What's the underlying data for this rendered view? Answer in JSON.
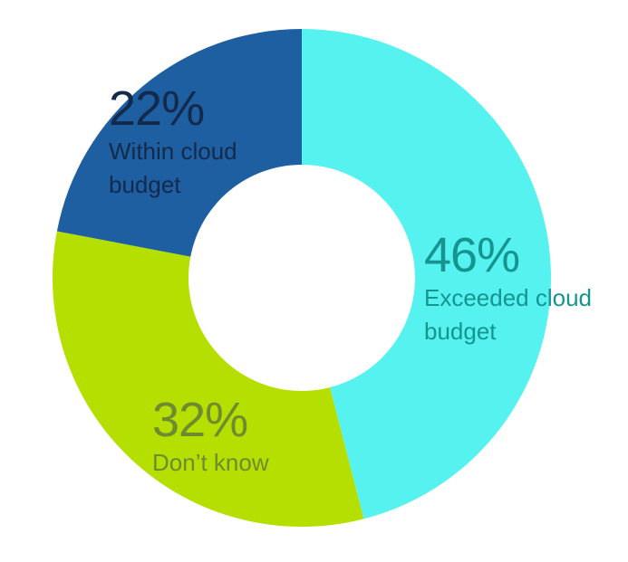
{
  "chart_data": {
    "type": "donut",
    "categories": [
      "Exceeded cloud budget",
      "Don’t know",
      "Within cloud budget"
    ],
    "values": [
      46,
      32,
      22
    ],
    "value_labels": [
      "46%",
      "32%",
      "22%"
    ],
    "colors": [
      "#55f2f0",
      "#b4df00",
      "#1d5fa1"
    ],
    "label_colors": [
      "#16948f",
      "#6e8b30",
      "#142a4d"
    ]
  }
}
